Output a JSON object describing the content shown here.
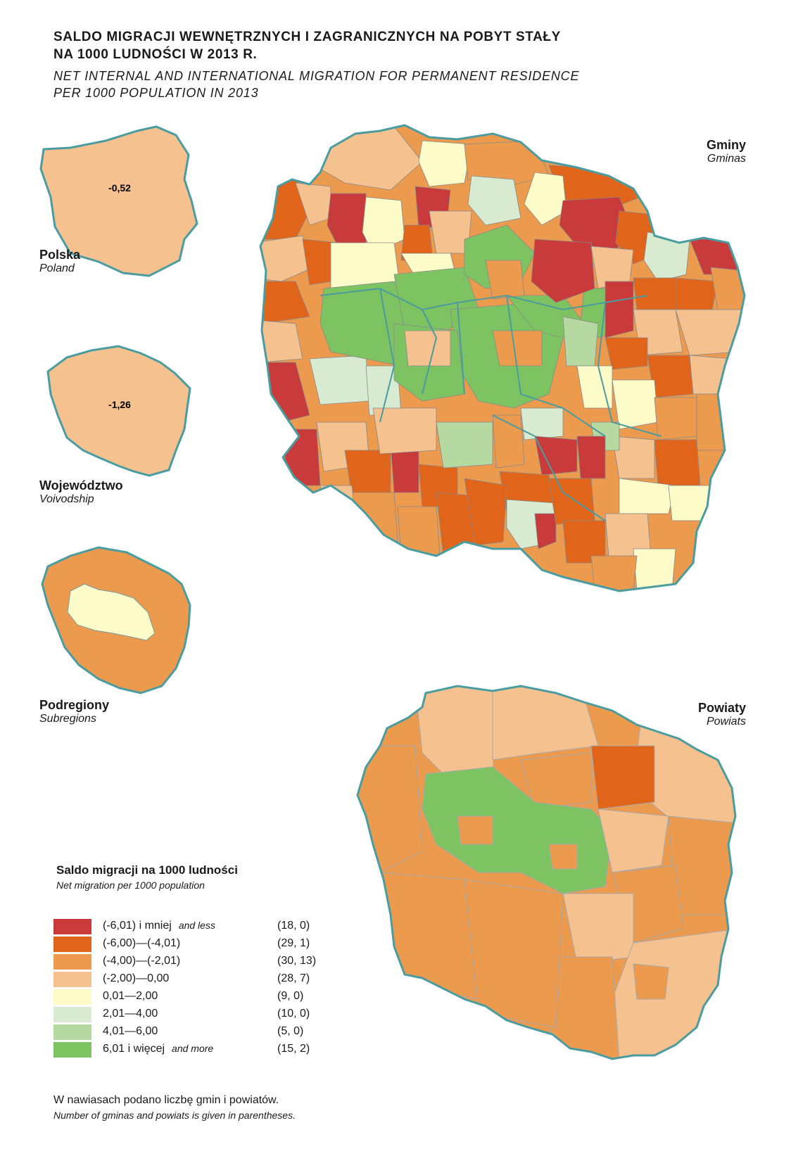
{
  "title": {
    "pl_line1": "SALDO MIGRACJI WEWNĘTRZNYCH I ZAGRANICZNYCH NA POBYT STAŁY",
    "pl_line2": "NA 1000 LUDNOŚCI W 2013 R.",
    "en_line1": "NET INTERNAL AND INTERNATIONAL MIGRATION FOR PERMANENT RESIDENCE",
    "en_line2": "PER 1000 POPULATION IN 2013"
  },
  "insets": {
    "poland": {
      "label_pl": "Polska",
      "label_en": "Poland",
      "value": "-0,52"
    },
    "voivodship": {
      "label_pl": "Województwo",
      "label_en": "Voivodship",
      "value": "-1,26"
    },
    "subregions": {
      "label_pl": "Podregiony",
      "label_en": "Subregions"
    }
  },
  "maps": {
    "gminas": {
      "label_pl": "Gminy",
      "label_en": "Gminas"
    },
    "powiats": {
      "label_pl": "Powiaty",
      "label_en": "Powiats"
    }
  },
  "legend": {
    "title_pl": "Saldo migracji na 1000 ludności",
    "title_en": "Net migration per 1000 population",
    "classes": [
      {
        "label": "(-6,01) i mniej",
        "label_en": "and less",
        "count": "(18, 0)",
        "color": "#c93a3a"
      },
      {
        "label": "(-6,00)—(-4,01)",
        "label_en": "",
        "count": "(29, 1)",
        "color": "#e0641a"
      },
      {
        "label": "(-4,00)—(-2,01)",
        "label_en": "",
        "count": "(30, 13)",
        "color": "#eb9a4e"
      },
      {
        "label": "(-2,00)—0,00",
        "label_en": "",
        "count": "(28, 7)",
        "color": "#f4c18f"
      },
      {
        "label": "0,01—2,00",
        "label_en": "",
        "count": "(9, 0)",
        "color": "#fdfbc8"
      },
      {
        "label": "2,01—4,00",
        "label_en": "",
        "count": "(10, 0)",
        "color": "#d8ead0"
      },
      {
        "label": "4,01—6,00",
        "label_en": "",
        "count": "(5, 0)",
        "color": "#b5d9a0"
      },
      {
        "label": "6,01 i więcej",
        "label_en": "and more",
        "count": "(15, 2)",
        "color": "#7dc361"
      }
    ]
  },
  "note": {
    "pl": "W nawiasach podano liczbę gmin i powiatów.",
    "en": "Number of gminas and powiats is given in parentheses."
  },
  "colors": {
    "border": "#4a9ca0",
    "internal_border": "#8a8a8a"
  }
}
